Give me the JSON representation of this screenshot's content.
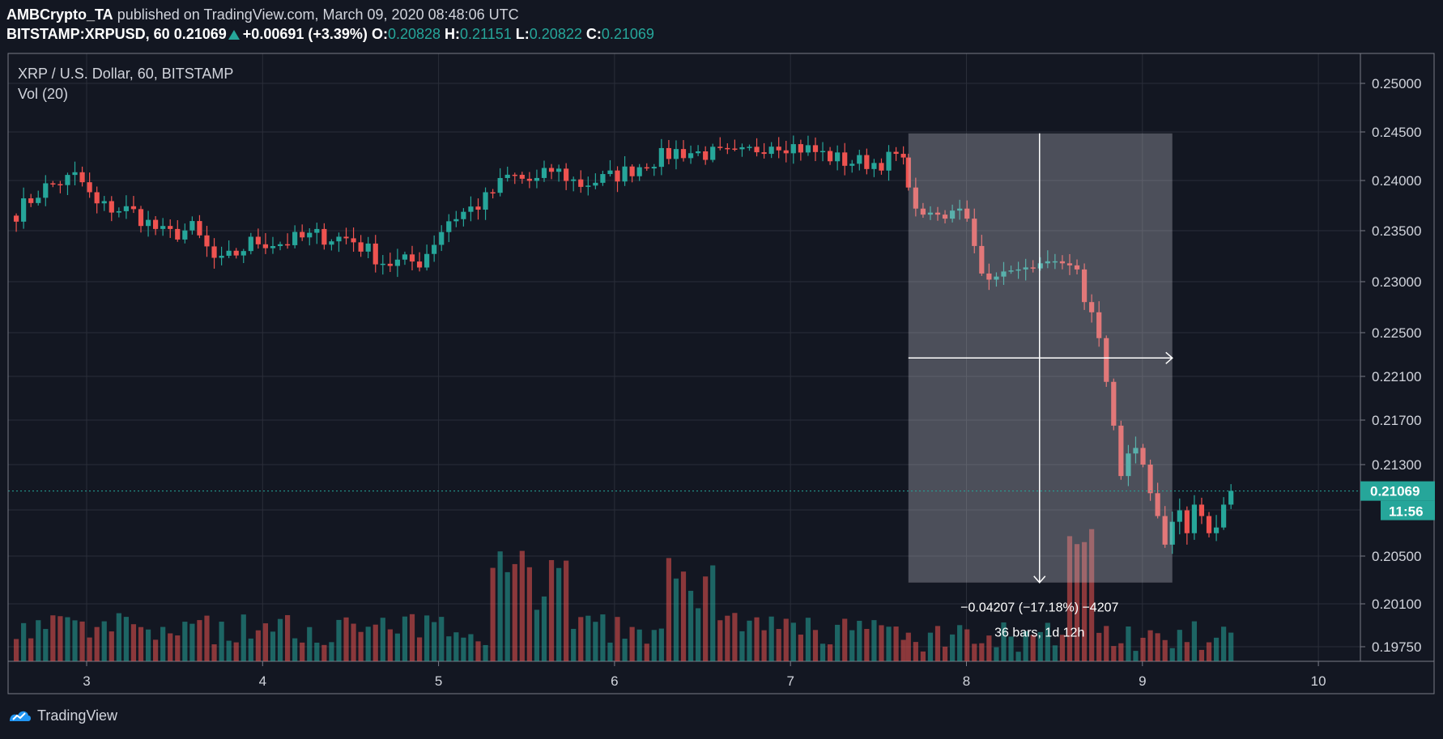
{
  "header": {
    "author": "AMBCrypto_TA",
    "published": "published on TradingView.com, March 09, 2020 08:48:06 UTC",
    "symbol": "BITSTAMP:XRPUSD, 60",
    "last": "0.21069",
    "change": "+0.00691 (+3.39%)",
    "o_label": "O:",
    "o_value": "0.20828",
    "h_label": "H:",
    "h_value": "0.21151",
    "l_label": "L:",
    "l_value": "0.20822",
    "c_label": "C:",
    "c_value": "0.21069"
  },
  "legend": {
    "title": "XRP / U.S. Dollar, 60, BITSTAMP",
    "volume": "Vol (20)"
  },
  "measure": {
    "line1": "−0.04207 (−17.18%) −4207",
    "line2": "36 bars, 1d 12h"
  },
  "price_label": "0.21069",
  "countdown": "11:56",
  "footer": {
    "brand": "TradingView"
  },
  "colors": {
    "up": "#26a69a",
    "down": "#ef5350",
    "background": "#131722",
    "grid": "#2a2e39"
  },
  "chart_data": {
    "type": "candlestick",
    "title": "XRP / U.S. Dollar, 60, BITSTAMP",
    "x_axis_label_hint": "day of March 2020",
    "x_ticks": [
      "3",
      "4",
      "5",
      "6",
      "7",
      "8",
      "9",
      "10"
    ],
    "y_ticks": [
      "0.25000",
      "0.24500",
      "0.24000",
      "0.23500",
      "0.23000",
      "0.22500",
      "0.22100",
      "0.21700",
      "0.21300",
      "0.20500",
      "0.20100",
      "0.19750"
    ],
    "current_price": 0.21069,
    "measure_range": {
      "from": 0.24485,
      "to": 0.20278,
      "bars": 36
    },
    "close_path_knots": [
      [
        2.6,
        0.2368
      ],
      [
        2.75,
        0.2392
      ],
      [
        2.95,
        0.2405
      ],
      [
        3.05,
        0.2375
      ],
      [
        3.25,
        0.237
      ],
      [
        3.45,
        0.2345
      ],
      [
        3.6,
        0.2352
      ],
      [
        3.75,
        0.2316
      ],
      [
        3.95,
        0.234
      ],
      [
        4.1,
        0.2338
      ],
      [
        4.3,
        0.2345
      ],
      [
        4.5,
        0.2342
      ],
      [
        4.6,
        0.233
      ],
      [
        4.7,
        0.2318
      ],
      [
        4.9,
        0.232
      ],
      [
        5.05,
        0.236
      ],
      [
        5.25,
        0.2378
      ],
      [
        5.4,
        0.2405
      ],
      [
        5.55,
        0.2398
      ],
      [
        5.65,
        0.2412
      ],
      [
        5.8,
        0.2396
      ],
      [
        5.95,
        0.2402
      ],
      [
        6.05,
        0.2408
      ],
      [
        6.2,
        0.242
      ],
      [
        6.35,
        0.243
      ],
      [
        6.5,
        0.2428
      ],
      [
        6.7,
        0.2425
      ],
      [
        6.9,
        0.244
      ],
      [
        7.1,
        0.2432
      ],
      [
        7.3,
        0.242
      ],
      [
        7.5,
        0.2418
      ],
      [
        7.6,
        0.2425
      ],
      [
        7.67,
        0.241
      ]
    ],
    "drop_closes": [
      0.2393,
      0.2372,
      0.2366,
      0.2368,
      0.2366,
      0.2362,
      0.237,
      0.2372,
      0.2362,
      0.2335,
      0.2308,
      0.2302,
      0.2305,
      0.231,
      0.2311,
      0.2312,
      0.2314,
      0.2313,
      0.2318,
      0.232,
      0.232,
      0.2318,
      0.2316,
      0.2312,
      0.228,
      0.227,
      0.2245,
      0.2205,
      0.2165,
      0.212,
      0.214,
      0.2145,
      0.213,
      0.2105,
      0.2085,
      0.206,
      0.208,
      0.209,
      0.207,
      0.2095,
      0.2085,
      0.207,
      0.2075,
      0.2095,
      0.2107
    ]
  }
}
